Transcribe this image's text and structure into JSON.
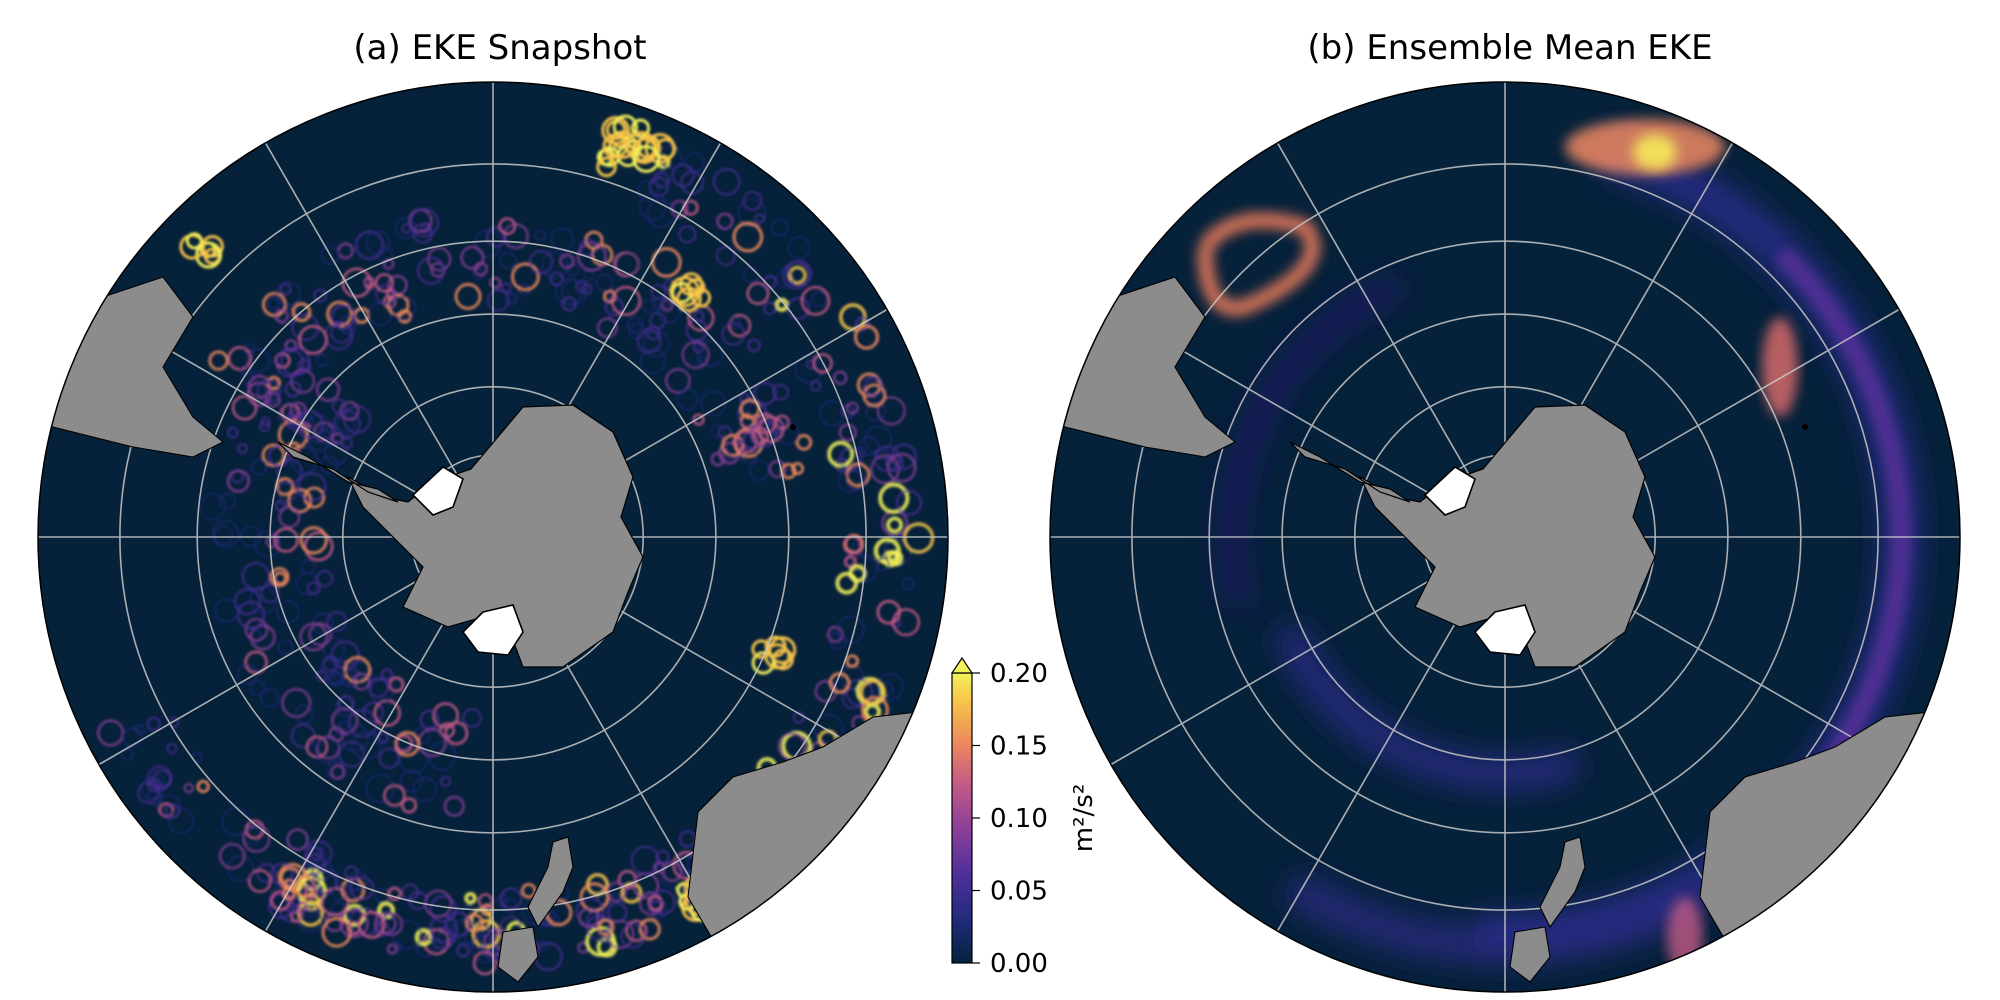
{
  "panels": [
    {
      "title": "(a) EKE Snapshot",
      "kind": "snapshot"
    },
    {
      "title": "(b) Ensemble Mean EKE",
      "kind": "mean"
    }
  ],
  "colorbar": {
    "label": "m²/s²",
    "ticks": [
      "0.00",
      "0.05",
      "0.10",
      "0.15",
      "0.20"
    ],
    "range": [
      0.0,
      0.2
    ],
    "extend": "max",
    "colormap": [
      "#06213a",
      "#1d2b7a",
      "#4d2f9a",
      "#8a3f98",
      "#c45b86",
      "#ee8a5d",
      "#f6c44a",
      "#f4f25a"
    ]
  },
  "colors": {
    "ocean": "#06213a",
    "land": "#8c8c8c",
    "ice_shelf": "#ffffff",
    "grid": "#c8c8c8",
    "coast": "#000000"
  }
}
